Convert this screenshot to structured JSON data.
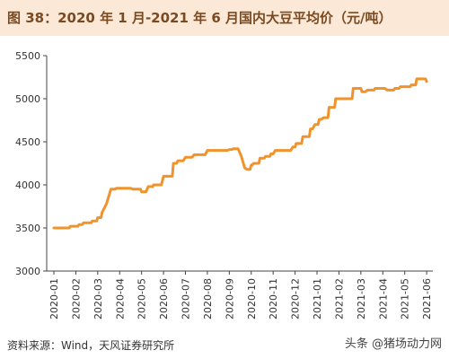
{
  "header": {
    "title": "图 38：2020 年 1 月-2021 年 6 月国内大豆平均价（元/吨）"
  },
  "footer": {
    "source": "资料来源：Wind，天风证券研究所",
    "watermark": "头条 @猪场动力网"
  },
  "chart_data": {
    "type": "line",
    "title": "",
    "xlabel": "",
    "ylabel": "",
    "ylim": [
      3000,
      5500
    ],
    "yticks": [
      3000,
      3500,
      4000,
      4500,
      5000,
      5500
    ],
    "grid": false,
    "legend": "none",
    "line_color": "#f0932b",
    "xticks": [
      "2020-01",
      "2020-02",
      "2020-03",
      "2020-04",
      "2020-05",
      "2020-06",
      "2020-07",
      "2020-08",
      "2020-09",
      "2020-10",
      "2020-11",
      "2020-12",
      "2021-01",
      "2021-02",
      "2021-03",
      "2021-04",
      "2021-05",
      "2021-06"
    ],
    "series": [
      {
        "name": "",
        "x": [
          0,
          0.7,
          0.75,
          1.1,
          1.15,
          1.3,
          1.35,
          1.7,
          1.75,
          1.95,
          2.0,
          2.15,
          2.2,
          2.4,
          2.6,
          2.8,
          2.85,
          3.5,
          3.6,
          3.95,
          4.0,
          4.2,
          4.3,
          4.5,
          4.55,
          4.9,
          5.0,
          5.4,
          5.45,
          5.6,
          5.65,
          5.9,
          6.0,
          6.3,
          6.4,
          6.9,
          7.0,
          7.9,
          8.0,
          8.1,
          8.2,
          8.4,
          8.55,
          8.7,
          8.8,
          8.95,
          9.0,
          9.05,
          9.1,
          9.35,
          9.4,
          9.6,
          9.65,
          9.85,
          9.9,
          10.0,
          10.1,
          10.8,
          10.9,
          11.0,
          11.05,
          11.3,
          11.35,
          11.65,
          11.7,
          11.8,
          11.9,
          12.05,
          12.1,
          12.2,
          12.3,
          12.5,
          12.55,
          12.8,
          12.85,
          13.6,
          13.65,
          14.0,
          14.05,
          14.2,
          14.3,
          14.6,
          14.65,
          15.1,
          15.2,
          15.5,
          15.55,
          15.75,
          15.8,
          16.25,
          16.3,
          16.5,
          16.55,
          16.95,
          17.0
        ],
        "y": [
          3500,
          3500,
          3520,
          3520,
          3540,
          3540,
          3560,
          3560,
          3580,
          3580,
          3620,
          3620,
          3680,
          3780,
          3950,
          3950,
          3960,
          3960,
          3950,
          3950,
          3920,
          3920,
          3980,
          3980,
          4000,
          4000,
          4100,
          4100,
          4250,
          4250,
          4280,
          4280,
          4320,
          4320,
          4350,
          4350,
          4400,
          4400,
          4410,
          4410,
          4420,
          4420,
          4330,
          4200,
          4180,
          4180,
          4230,
          4230,
          4250,
          4250,
          4310,
          4310,
          4330,
          4330,
          4360,
          4360,
          4400,
          4400,
          4440,
          4440,
          4480,
          4480,
          4560,
          4560,
          4650,
          4650,
          4700,
          4700,
          4760,
          4760,
          4780,
          4780,
          4900,
          4900,
          5000,
          5000,
          5120,
          5120,
          5080,
          5080,
          5100,
          5100,
          5120,
          5120,
          5100,
          5100,
          5120,
          5120,
          5140,
          5140,
          5160,
          5160,
          5230,
          5230,
          5200
        ]
      }
    ]
  }
}
